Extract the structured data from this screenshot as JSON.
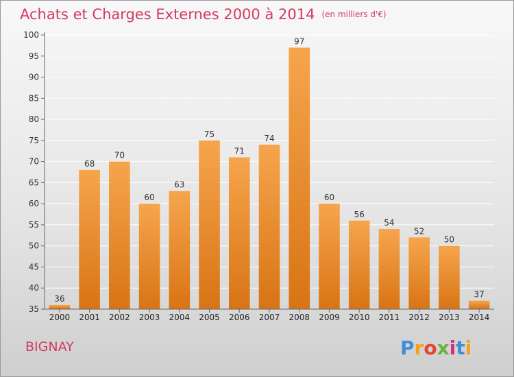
{
  "chart_data": {
    "type": "bar",
    "title": "Achats et Charges Externes 2000 à 2014",
    "subtitle": "(en milliers d'€)",
    "categories": [
      "2000",
      "2001",
      "2002",
      "2003",
      "2004",
      "2005",
      "2006",
      "2007",
      "2008",
      "2009",
      "2010",
      "2011",
      "2012",
      "2013",
      "2014"
    ],
    "values": [
      36,
      68,
      70,
      60,
      63,
      75,
      71,
      74,
      97,
      60,
      56,
      54,
      52,
      50,
      37
    ],
    "ylim": [
      35,
      100
    ],
    "yticks": [
      35,
      40,
      45,
      50,
      55,
      60,
      65,
      70,
      75,
      80,
      85,
      90,
      95,
      100
    ],
    "grid": true,
    "bar_color_top": "#f6a54d",
    "bar_color_bottom": "#d87414"
  },
  "place": "BIGNAY",
  "logo": {
    "letters": [
      "P",
      "r",
      "o",
      "x",
      "i",
      "t",
      "i"
    ],
    "colors": [
      "#3d8fd6",
      "#f4a21d",
      "#e4452f",
      "#6bb23c",
      "#d6317a",
      "#3d8fd6",
      "#f4a21d"
    ]
  }
}
